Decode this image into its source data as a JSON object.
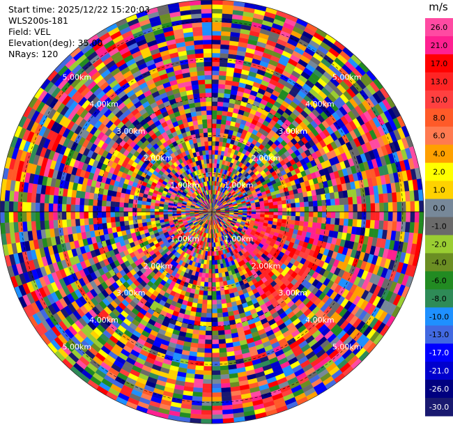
{
  "header": {
    "start_time": "Start time: 2025/12/22 15:20:03",
    "instrument": "WLS200s-181",
    "field": "Field: VEL",
    "elevation": "Elevation(deg): 35.00",
    "nrays": "NRays: 120"
  },
  "chart_data": {
    "type": "heatmap",
    "projection": "polar-ppi",
    "field": "VEL",
    "units": "m/s",
    "n_rays": 120,
    "elevation_deg": 35.0,
    "range_rings_km": [
      "1.00km",
      "2.00km",
      "3.00km",
      "4.00km",
      "5.00km"
    ],
    "range_rings_values_km": [
      1,
      2,
      3,
      4,
      5
    ],
    "max_range_km": 5.55,
    "colorbar": {
      "title": "m/s",
      "ticks": [
        "26.0",
        "21.0",
        "17.0",
        "13.0",
        "10.0",
        "8.0",
        "6.0",
        "4.0",
        "2.0",
        "1.0",
        "0.0",
        "-1.0",
        "-2.0",
        "-4.0",
        "-6.0",
        "-8.0",
        "-10.0",
        "-13.0",
        "-17.0",
        "-21.0",
        "-26.0",
        "-30.0"
      ],
      "bins_top_to_bottom": [
        {
          "label": "26.0",
          "color": "#ff4aa2"
        },
        {
          "label": "21.0",
          "color": "#ff2090"
        },
        {
          "label": "17.0",
          "color": "#ff0000"
        },
        {
          "label": "13.0",
          "color": "#ff2424"
        },
        {
          "label": "10.0",
          "color": "#ff4040"
        },
        {
          "label": "8.0",
          "color": "#ff5a28"
        },
        {
          "label": "6.0",
          "color": "#ff7a50"
        },
        {
          "label": "4.0",
          "color": "#ffa000"
        },
        {
          "label": "2.0",
          "color": "#ffff00"
        },
        {
          "label": "1.0",
          "color": "#ffd200"
        },
        {
          "label": "0.0",
          "color": "#778899"
        },
        {
          "label": "-1.0",
          "color": "#6a6a6a"
        },
        {
          "label": "-2.0",
          "color": "#9acd32"
        },
        {
          "label": "-4.0",
          "color": "#6b8e23"
        },
        {
          "label": "-6.0",
          "color": "#228b22"
        },
        {
          "label": "-8.0",
          "color": "#2e8b57"
        },
        {
          "label": "-10.0",
          "color": "#1e90ff"
        },
        {
          "label": "-13.0",
          "color": "#4169e1"
        },
        {
          "label": "-17.0",
          "color": "#0000ff"
        },
        {
          "label": "-21.0",
          "color": "#0000cd"
        },
        {
          "label": "-26.0",
          "color": "#000080"
        },
        {
          "label": "-30.0",
          "color": "#191970"
        }
      ]
    }
  }
}
